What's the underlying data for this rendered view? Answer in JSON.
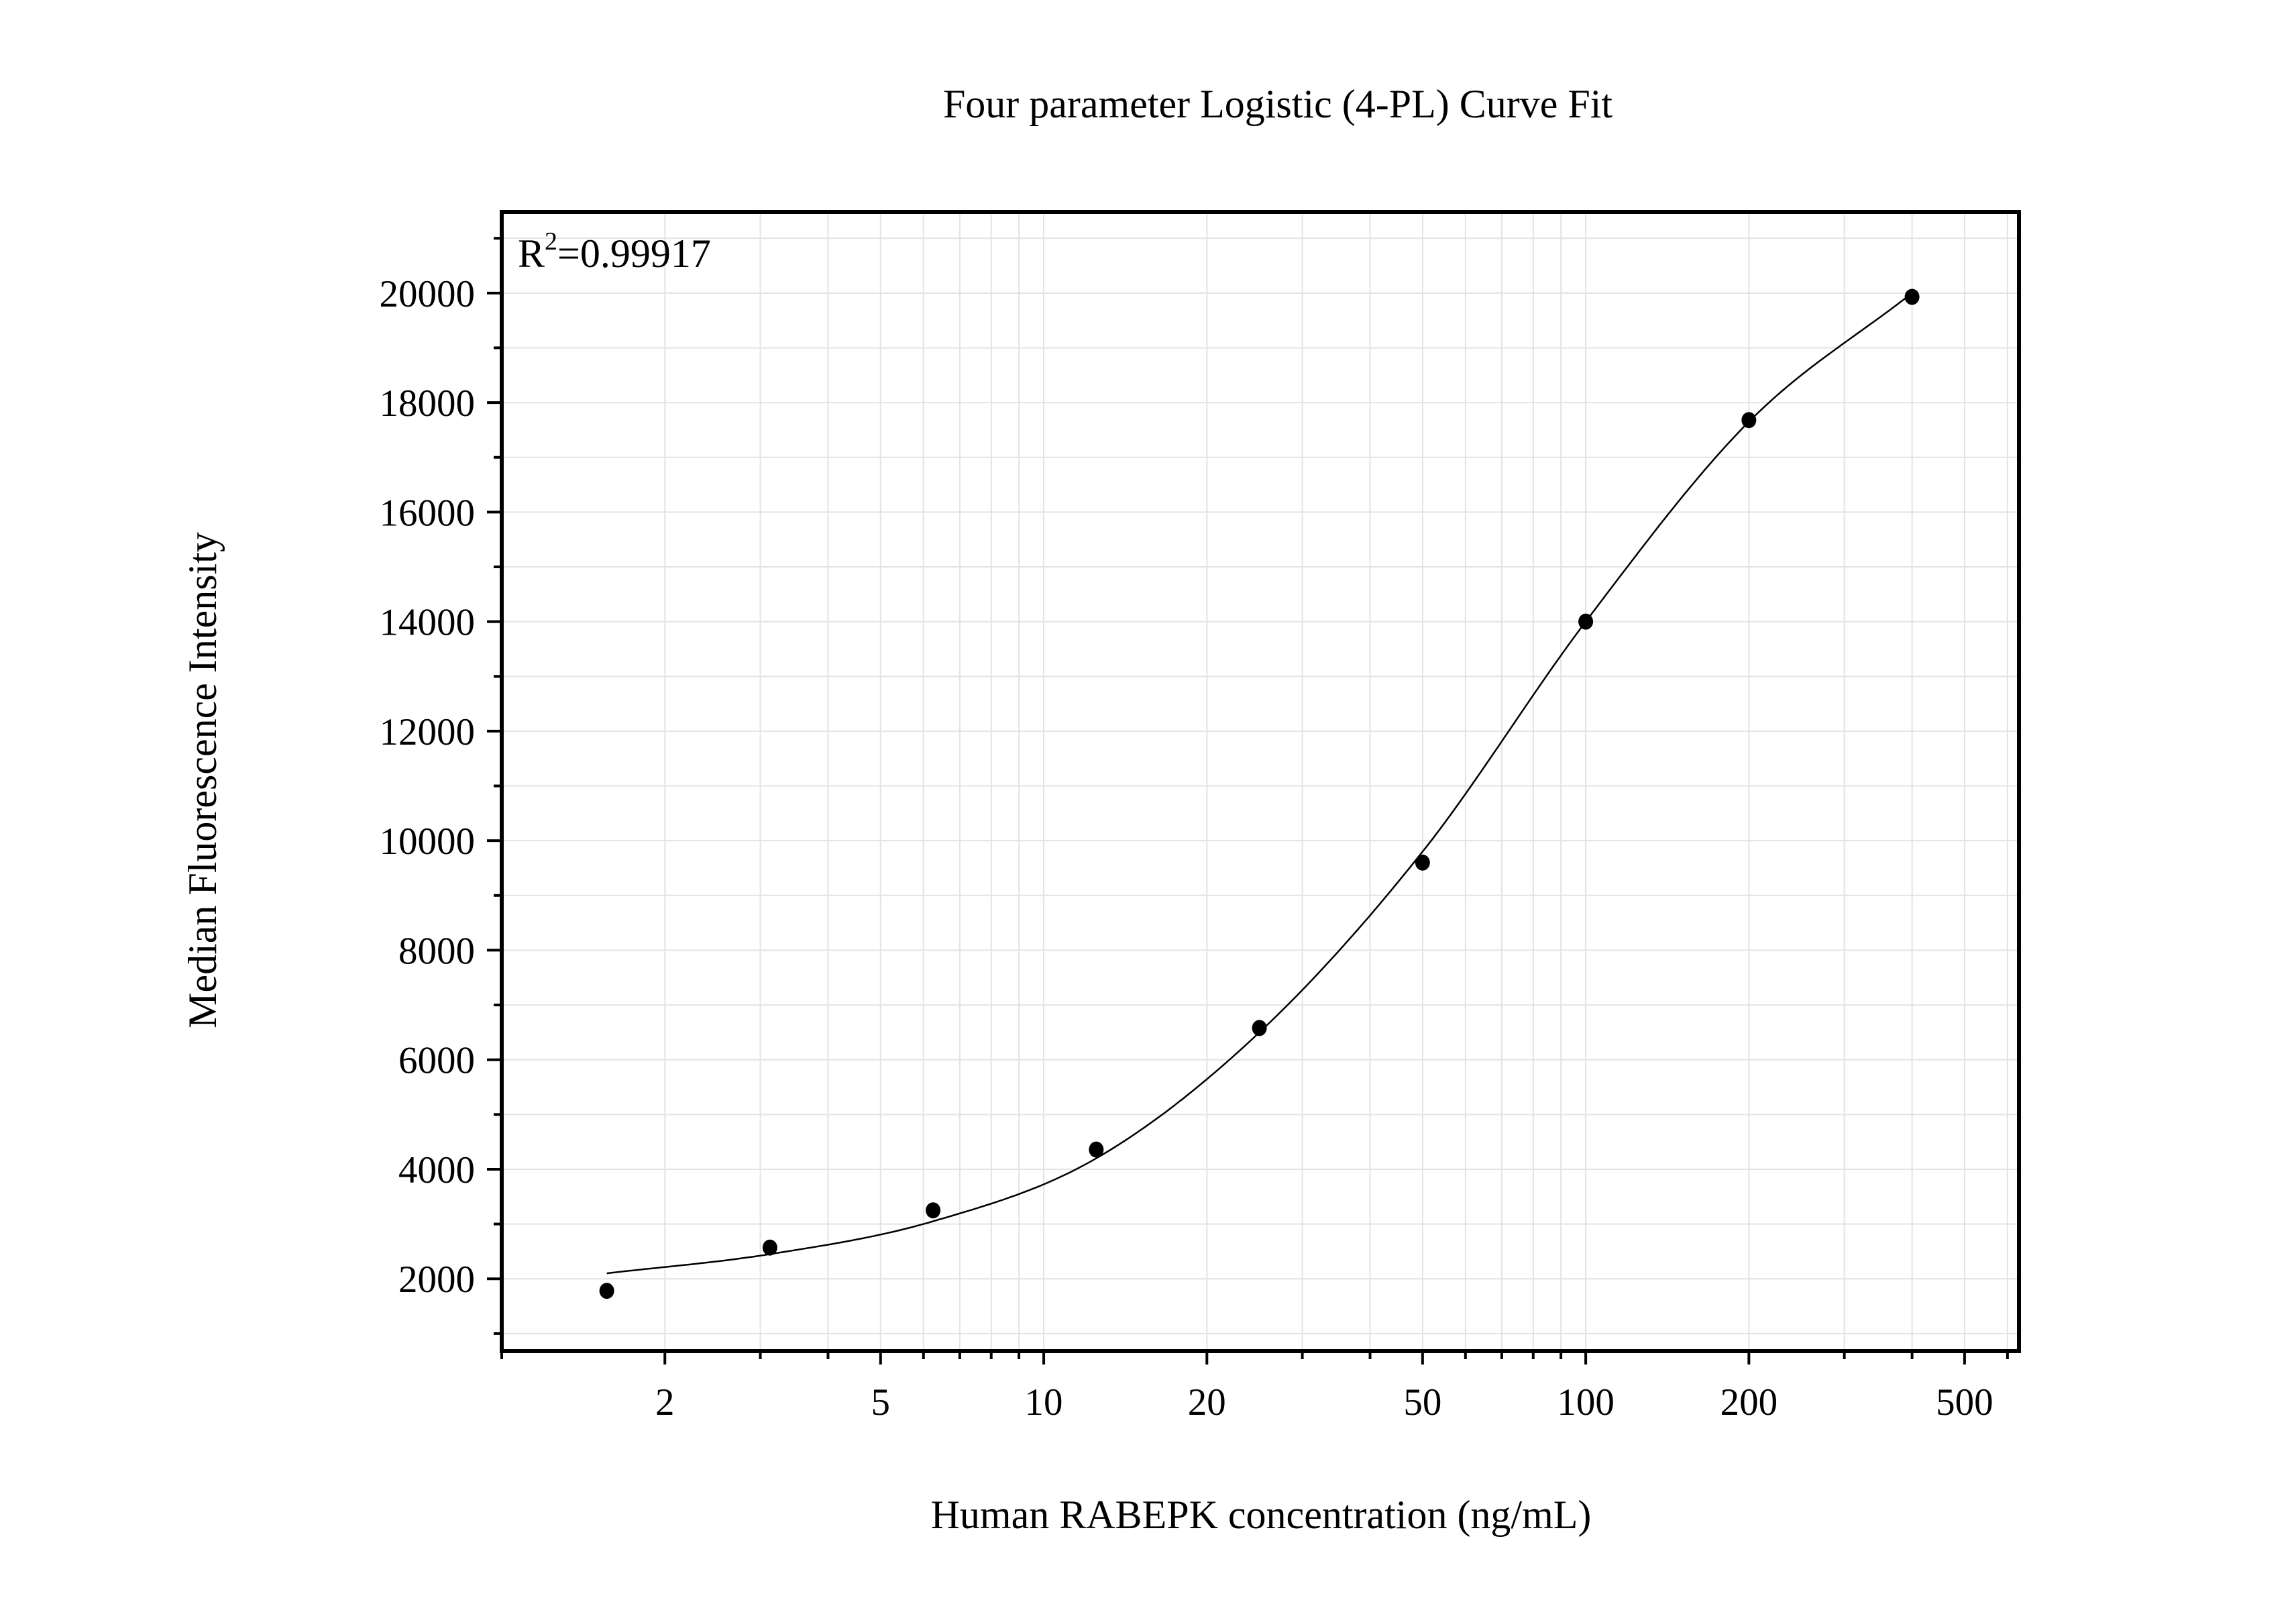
{
  "chart_data": {
    "type": "scatter",
    "title": "Four parameter Logistic (4-PL) Curve Fit",
    "xlabel": "Human RABEPK concentration (ng/mL)",
    "ylabel": "Median Fluorescence Intensity",
    "x_scale": "log",
    "xlim": [
      1,
      630
    ],
    "ylim": [
      680,
      21480
    ],
    "x_ticks": [
      2,
      5,
      10,
      20,
      50,
      100,
      200,
      500
    ],
    "y_ticks": [
      2000,
      4000,
      6000,
      8000,
      10000,
      12000,
      14000,
      16000,
      18000,
      20000
    ],
    "grid": true,
    "annotation": {
      "text": "R",
      "superscript": "2",
      "value": "=0.99917",
      "placement": "top-left"
    },
    "colors": {
      "points": "#000000",
      "curve": "#000000",
      "grid": "#e3e3e3"
    },
    "points": {
      "x": [
        1.5625,
        3.125,
        6.25,
        12.5,
        25,
        50,
        100,
        200,
        400
      ],
      "y": [
        1780,
        2570,
        3250,
        4360,
        6580,
        9600,
        14000,
        17680,
        19930
      ]
    },
    "fit_curve": {
      "x": [
        1.5625,
        3.125,
        6.25,
        12.5,
        25,
        50,
        100,
        200,
        400
      ],
      "y": [
        2100,
        2450,
        3050,
        4200,
        6500,
        9800,
        14000,
        17650,
        20000
      ]
    }
  }
}
